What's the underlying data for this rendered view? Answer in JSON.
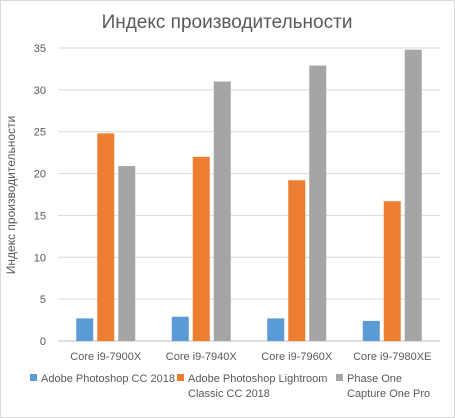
{
  "chart_data": {
    "type": "bar",
    "title": "Индекс производительности",
    "ylabel": "Индекс производительности",
    "xlabel": "",
    "ylim": [
      0,
      35
    ],
    "yticks": [
      0,
      5,
      10,
      15,
      20,
      25,
      30,
      35
    ],
    "grid": true,
    "legend_position": "bottom",
    "categories": [
      "Core i9-7900X",
      "Core i9-7940X",
      "Core i9-7960X",
      "Core i9-7980XE"
    ],
    "series": [
      {
        "name": "Adobe Photoshop CC 2018",
        "legend_lines": [
          "Adobe Photoshop CC 2018"
        ],
        "color": "#5b9bd5",
        "values": [
          2.7,
          2.9,
          2.7,
          2.4
        ]
      },
      {
        "name": "Adobe Photoshop Lightroom Classic CC 2018",
        "legend_lines": [
          "Adobe Photoshop Lightroom",
          "Classic CC 2018"
        ],
        "color": "#ed7d31",
        "values": [
          24.8,
          22.0,
          19.2,
          16.7
        ]
      },
      {
        "name": "Phase One Capture One Pro",
        "legend_lines": [
          "Phase One",
          "Capture One Pro"
        ],
        "color": "#a5a5a5",
        "values": [
          20.9,
          31.0,
          32.9,
          34.8
        ]
      }
    ]
  }
}
